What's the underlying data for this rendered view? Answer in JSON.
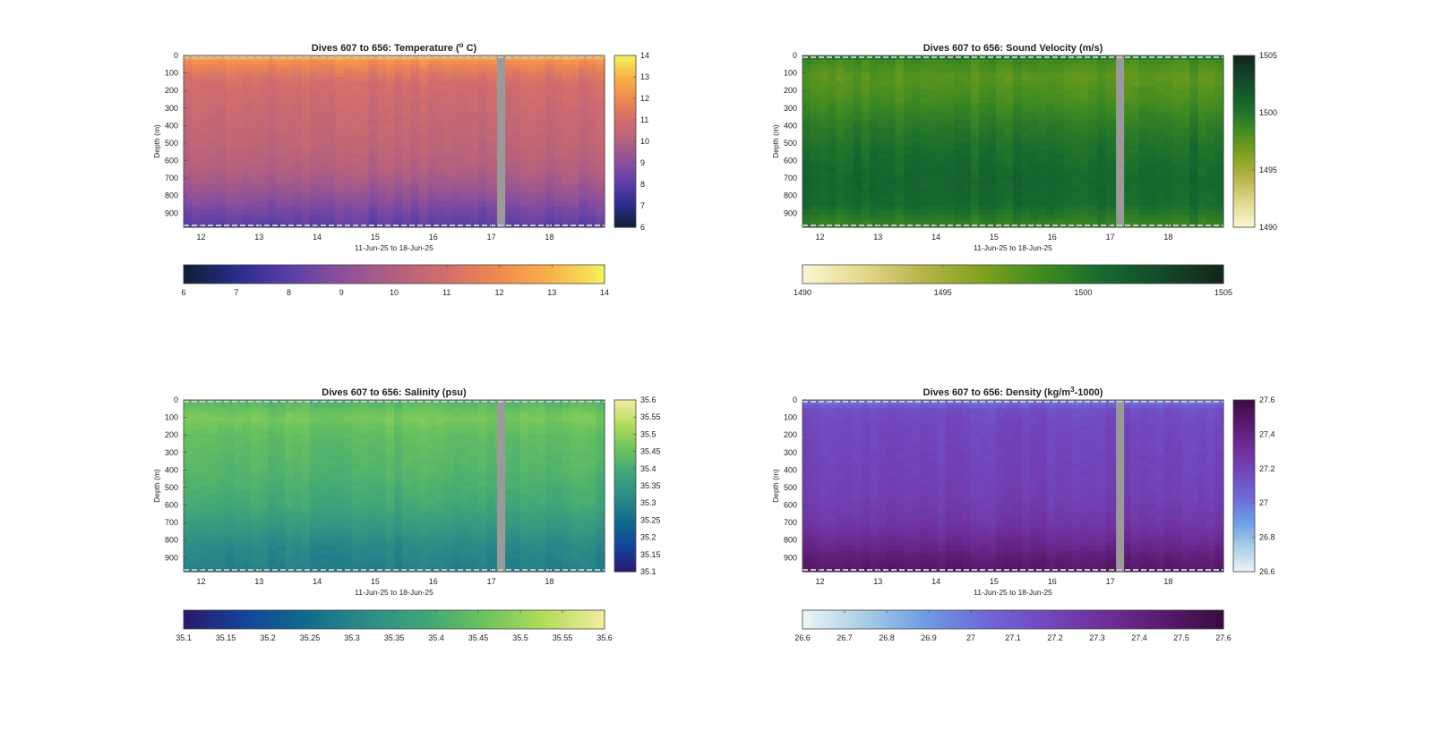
{
  "chart_data": [
    {
      "type": "heatmap",
      "title": "Dives 607 to 656: Temperature (",
      "title_unit": "o",
      "title_end": " C)",
      "xlabel": "11-Jun-25 to 18-Jun-25",
      "ylabel": "Depth (m)",
      "x_ticks": [
        "12",
        "13",
        "14",
        "15",
        "16",
        "17",
        "18"
      ],
      "y_ticks": [
        "0",
        "100",
        "200",
        "300",
        "400",
        "500",
        "600",
        "700",
        "800",
        "900"
      ],
      "xlim": [
        11.7,
        18.95
      ],
      "ylim": [
        0,
        980
      ],
      "gap_x": 17.1,
      "color_range": [
        6,
        14
      ],
      "colorbar_ticks": [
        "6",
        "7",
        "8",
        "9",
        "10",
        "11",
        "12",
        "13",
        "14"
      ],
      "colormap": [
        "#0b1f33",
        "#2b2c8a",
        "#5a3ea8",
        "#8b4f9c",
        "#b2607f",
        "#d26e6c",
        "#f08a51",
        "#f9b24a",
        "#f3f25c"
      ],
      "profile": [
        [
          0,
          13.1
        ],
        [
          30,
          12.2
        ],
        [
          80,
          11.6
        ],
        [
          150,
          11.0
        ],
        [
          300,
          10.7
        ],
        [
          500,
          10.4
        ],
        [
          650,
          10.0
        ],
        [
          780,
          9.3
        ],
        [
          880,
          8.6
        ],
        [
          980,
          8.0
        ]
      ]
    },
    {
      "type": "heatmap",
      "title": "Dives 607 to 656: Sound Velocity (m/s)",
      "xlabel": "11-Jun-25 to 18-Jun-25",
      "ylabel": "Depth (m)",
      "x_ticks": [
        "12",
        "13",
        "14",
        "15",
        "16",
        "17",
        "18"
      ],
      "y_ticks": [
        "0",
        "100",
        "200",
        "300",
        "400",
        "500",
        "600",
        "700",
        "800",
        "900"
      ],
      "xlim": [
        11.7,
        18.95
      ],
      "ylim": [
        0,
        980
      ],
      "gap_x": 17.1,
      "color_range": [
        1490,
        1505
      ],
      "colorbar_ticks": [
        "1490",
        "1495",
        "1500",
        "1505"
      ],
      "colormap": [
        "#fbf6d3",
        "#e3d88d",
        "#b8b34a",
        "#7ea21c",
        "#3f8a22",
        "#16692e",
        "#14482b",
        "#13261a"
      ],
      "profile": [
        [
          0,
          1500.6
        ],
        [
          30,
          1498.5
        ],
        [
          120,
          1497.6
        ],
        [
          250,
          1498.3
        ],
        [
          400,
          1499.6
        ],
        [
          550,
          1500.4
        ],
        [
          700,
          1500.9
        ],
        [
          850,
          1500.7
        ],
        [
          930,
          1499.6
        ],
        [
          980,
          1498.8
        ]
      ]
    },
    {
      "type": "heatmap",
      "title": "Dives 607 to 656: Salinity (psu)",
      "xlabel": "11-Jun-25 to 18-Jun-25",
      "ylabel": "Depth (m)",
      "x_ticks": [
        "12",
        "13",
        "14",
        "15",
        "16",
        "17",
        "18"
      ],
      "y_ticks": [
        "0",
        "100",
        "200",
        "300",
        "400",
        "500",
        "600",
        "700",
        "800",
        "900"
      ],
      "xlim": [
        11.7,
        18.95
      ],
      "ylim": [
        0,
        980
      ],
      "gap_x": 17.1,
      "color_range": [
        35.1,
        35.6
      ],
      "colorbar_ticks": [
        "35.1",
        "35.15",
        "35.2",
        "35.25",
        "35.3",
        "35.35",
        "35.4",
        "35.45",
        "35.5",
        "35.55",
        "35.6"
      ],
      "colormap": [
        "#2a186c",
        "#14439c",
        "#0f6a8c",
        "#2d8a87",
        "#3fa579",
        "#6cc35d",
        "#b2dc5b",
        "#f5eca0"
      ],
      "profile": [
        [
          0,
          35.41
        ],
        [
          40,
          35.44
        ],
        [
          100,
          35.47
        ],
        [
          200,
          35.44
        ],
        [
          400,
          35.42
        ],
        [
          600,
          35.39
        ],
        [
          750,
          35.34
        ],
        [
          830,
          35.31
        ],
        [
          900,
          35.3
        ],
        [
          980,
          35.29
        ]
      ]
    },
    {
      "type": "heatmap",
      "title": "Dives 607 to 656: Density (kg/m",
      "title_unit": "3",
      "title_end": "-1000)",
      "xlabel": "11-Jun-25 to 18-Jun-25",
      "ylabel": "Depth (m)",
      "x_ticks": [
        "12",
        "13",
        "14",
        "15",
        "16",
        "17",
        "18"
      ],
      "y_ticks": [
        "0",
        "100",
        "200",
        "300",
        "400",
        "500",
        "600",
        "700",
        "800",
        "900"
      ],
      "xlim": [
        11.7,
        18.95
      ],
      "ylim": [
        0,
        980
      ],
      "gap_x": 17.1,
      "color_range": [
        26.6,
        27.6
      ],
      "colorbar_ticks": [
        "26.6",
        "26.7",
        "26.8",
        "26.9",
        "27",
        "27.1",
        "27.2",
        "27.3",
        "27.4",
        "27.5",
        "27.6"
      ],
      "colorbar_ticks_side": [
        "26.6",
        "26.8",
        "27",
        "27.2",
        "27.4",
        "27.6"
      ],
      "colormap": [
        "#eef4f5",
        "#a9cfe6",
        "#6e9ee6",
        "#6f6ad8",
        "#7249bf",
        "#6f2f9a",
        "#5a1a6f",
        "#380d3e"
      ],
      "profile": [
        [
          0,
          26.95
        ],
        [
          20,
          27.05
        ],
        [
          60,
          27.15
        ],
        [
          150,
          27.18
        ],
        [
          350,
          27.2
        ],
        [
          550,
          27.22
        ],
        [
          700,
          27.27
        ],
        [
          800,
          27.34
        ],
        [
          900,
          27.43
        ],
        [
          980,
          27.48
        ]
      ]
    }
  ]
}
